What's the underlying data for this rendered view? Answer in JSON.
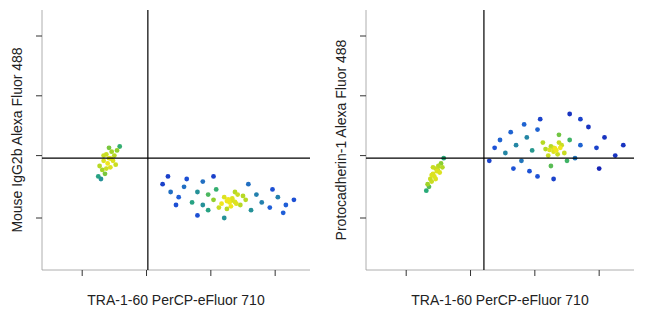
{
  "chart_data": [
    {
      "type": "scatter",
      "x_label": "TRA-1-60 PerCP-eFluor 710",
      "y_label": "Mouse IgG2b Alexa Fluor 488",
      "xlim": [
        0,
        1000
      ],
      "ylim": [
        0,
        1000
      ],
      "xticks": [
        150,
        390,
        630,
        870
      ],
      "yticks": [
        200,
        440,
        670,
        900
      ],
      "tick_labels": false,
      "quadrant_x": 395,
      "quadrant_y": 430,
      "x": [
        215,
        230,
        240,
        250,
        260,
        225,
        245,
        255,
        270,
        235,
        265,
        280,
        210,
        250,
        275,
        240,
        258,
        220,
        290,
        230,
        450,
        480,
        510,
        530,
        560,
        580,
        600,
        620,
        640,
        660,
        680,
        700,
        720,
        740,
        760,
        780,
        800,
        820,
        850,
        880,
        910,
        940,
        620,
        650,
        690,
        710,
        730,
        670,
        705,
        690,
        720,
        750,
        600,
        540,
        470,
        500,
        860,
        900,
        580,
        770,
        680,
        640,
        710,
        695,
        725
      ],
      "values": [
        400,
        420,
        445,
        430,
        455,
        385,
        410,
        395,
        440,
        370,
        420,
        460,
        360,
        470,
        405,
        390,
        428,
        350,
        475,
        440,
        330,
        300,
        280,
        320,
        260,
        300,
        250,
        290,
        270,
        240,
        280,
        260,
        300,
        250,
        270,
        230,
        290,
        260,
        240,
        280,
        250,
        270,
        230,
        310,
        235,
        275,
        290,
        255,
        245,
        265,
        262,
        285,
        340,
        350,
        360,
        250,
        310,
        220,
        210,
        330,
        200,
        360,
        268,
        272,
        255
      ]
    },
    {
      "type": "scatter",
      "x_label": "TRA-1-60 PerCP-eFluor 710",
      "y_label": "Protocadherin-1 Alexa Fluor 488",
      "xlim": [
        0,
        1000
      ],
      "ylim": [
        0,
        1000
      ],
      "xticks": [
        150,
        390,
        630,
        870
      ],
      "yticks": [
        200,
        440,
        670,
        900
      ],
      "tick_labels": false,
      "quadrant_x": 440,
      "quadrant_y": 430,
      "x": [
        230,
        240,
        250,
        260,
        270,
        245,
        255,
        265,
        280,
        235,
        250,
        275,
        290,
        260,
        245,
        268,
        225,
        285,
        460,
        480,
        500,
        520,
        540,
        560,
        580,
        600,
        620,
        640,
        660,
        680,
        700,
        720,
        740,
        760,
        780,
        800,
        830,
        860,
        890,
        930,
        960,
        610,
        650,
        690,
        710,
        730,
        670,
        700,
        690,
        720,
        750,
        590,
        550,
        870,
        800,
        640,
        760,
        700,
        705,
        685,
        715,
        725
      ],
      "values": [
        330,
        350,
        370,
        390,
        400,
        340,
        360,
        380,
        410,
        320,
        395,
        375,
        430,
        350,
        365,
        385,
        305,
        395,
        420,
        470,
        500,
        450,
        530,
        480,
        420,
        510,
        460,
        540,
        490,
        440,
        470,
        520,
        450,
        500,
        430,
        480,
        550,
        470,
        510,
        440,
        480,
        380,
        580,
        400,
        460,
        480,
        465,
        455,
        475,
        490,
        420,
        560,
        390,
        390,
        580,
        360,
        600,
        350,
        468,
        462,
        445,
        470
      ]
    }
  ]
}
